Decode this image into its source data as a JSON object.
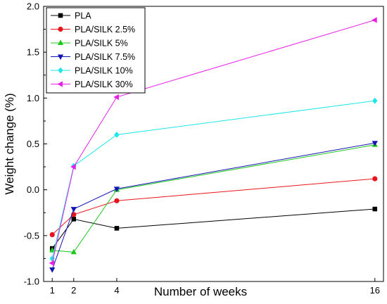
{
  "chart_data": {
    "type": "line",
    "xlabel": "Number  of weeks",
    "ylabel": "Weight change (%)",
    "x": [
      1,
      2,
      4,
      16
    ],
    "xticks": [
      "1",
      "2",
      "4",
      "16"
    ],
    "xlim": [
      0.6,
      16.4
    ],
    "ylim": [
      -1.0,
      2.0
    ],
    "yticks": [
      "-1.0",
      "-0.5",
      "0.0",
      "0.5",
      "1.0",
      "1.5",
      "2.0"
    ],
    "legend_position": "top-left",
    "grid": false,
    "series": [
      {
        "name": "PLA",
        "color": "#000000",
        "marker": "square",
        "values": [
          -0.64,
          -0.32,
          -0.42,
          -0.21
        ]
      },
      {
        "name": "PLA/SILK 2.5%",
        "color": "#e8141c",
        "marker": "circle",
        "values": [
          -0.49,
          -0.27,
          -0.12,
          0.12
        ]
      },
      {
        "name": "PLA/SILK 5%",
        "color": "#1ec81e",
        "marker": "triangle-up",
        "values": [
          -0.66,
          -0.68,
          0.0,
          0.49
        ]
      },
      {
        "name": "PLA/SILK 7.5%",
        "color": "#1414b4",
        "marker": "triangle-down",
        "values": [
          -0.87,
          -0.21,
          0.01,
          0.51
        ]
      },
      {
        "name": "PLA/SILK 10%",
        "color": "#1ee6e6",
        "marker": "diamond",
        "values": [
          -0.75,
          0.26,
          0.6,
          0.97
        ]
      },
      {
        "name": "PLA/SILK 30%",
        "color": "#e61ee6",
        "marker": "triangle-left",
        "values": [
          -0.8,
          0.25,
          1.01,
          1.85
        ]
      }
    ]
  }
}
